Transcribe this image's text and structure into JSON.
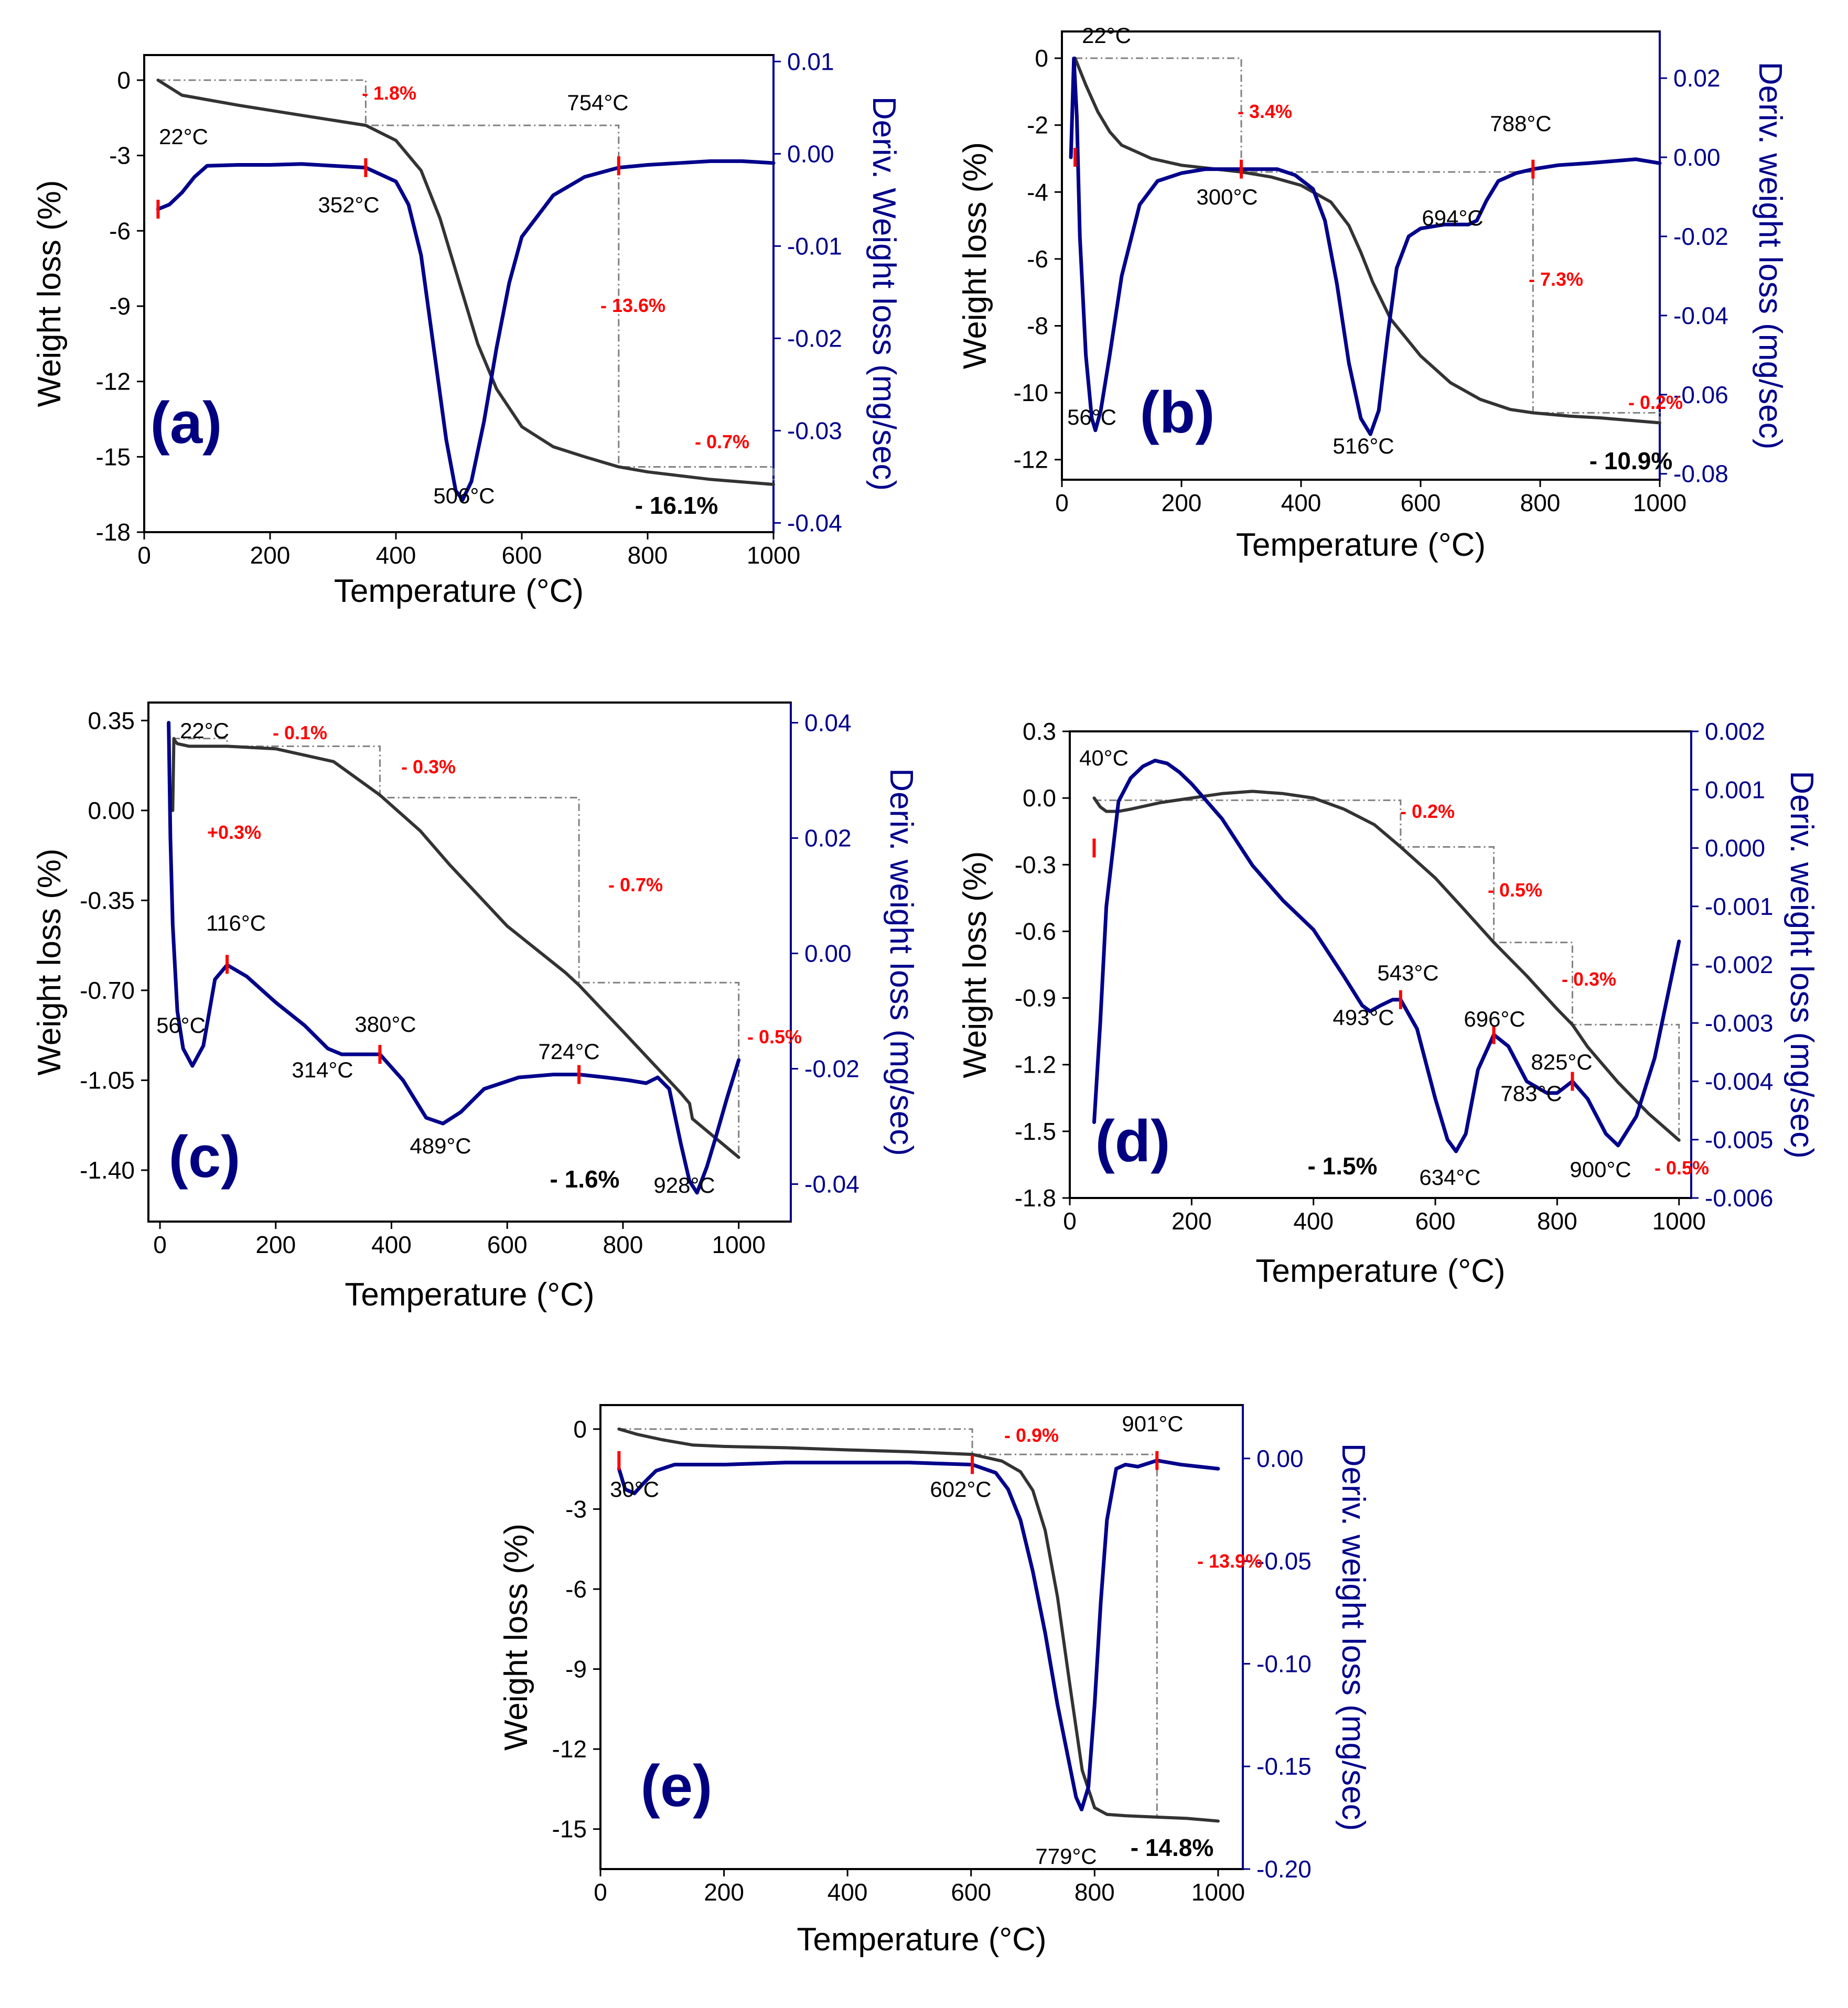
{
  "figure": {
    "axis_labels": {
      "x": "Temperature (°C)",
      "y_left": "Weight loss (%)",
      "y_right_a": "Deriv. Weight loss (mg/sec)",
      "y_right_other": "Deriv. weight loss (mg/sec)"
    },
    "colors": {
      "weight": "#333333",
      "deriv": "#00008b",
      "marker": "#ff0000",
      "label": "#000080",
      "step": "#808080"
    }
  },
  "chart_data": [
    {
      "id": "a",
      "type": "line",
      "panel_label": "(a)",
      "xlabel": "Temperature (°C)",
      "ylabel": "Weight loss (%)",
      "y2label": "Deriv. Weight loss (mg/sec)",
      "xlim": [
        0,
        1000
      ],
      "ylim": [
        -18,
        1
      ],
      "y2lim": [
        -0.041,
        0.0107
      ],
      "x_ticks": [
        0,
        200,
        400,
        600,
        800,
        1000
      ],
      "y_ticks": [
        0,
        -3,
        -6,
        -9,
        -12,
        -15,
        -18
      ],
      "y_tick_labels": [
        "0",
        "-3",
        "-6",
        "-9",
        "-12",
        "-15",
        "-18"
      ],
      "y2_ticks": [
        0.01,
        0.0,
        -0.01,
        -0.02,
        -0.03,
        -0.04
      ],
      "y2_tick_labels": [
        "0.01",
        "0.00",
        "-0.01",
        "-0.02",
        "-0.03",
        "-0.04"
      ],
      "series": [
        {
          "name": "Weight loss",
          "axis": "left",
          "x": [
            22,
            60,
            150,
            250,
            352,
            400,
            440,
            470,
            500,
            530,
            560,
            600,
            650,
            700,
            754,
            800,
            900,
            1000
          ],
          "values": [
            0,
            -0.6,
            -1.0,
            -1.4,
            -1.8,
            -2.4,
            -3.6,
            -5.5,
            -8.0,
            -10.5,
            -12.3,
            -13.8,
            -14.6,
            -15.0,
            -15.4,
            -15.6,
            -15.9,
            -16.1
          ]
        },
        {
          "name": "Deriv. weight loss",
          "axis": "right",
          "x": [
            22,
            40,
            60,
            80,
            100,
            150,
            200,
            250,
            300,
            352,
            400,
            420,
            440,
            460,
            480,
            495,
            506,
            520,
            540,
            560,
            580,
            600,
            650,
            700,
            754,
            800,
            850,
            900,
            950,
            1000
          ],
          "values": [
            -0.006,
            -0.0055,
            -0.0042,
            -0.0025,
            -0.0013,
            -0.0012,
            -0.0012,
            -0.0011,
            -0.0013,
            -0.0015,
            -0.003,
            -0.0055,
            -0.011,
            -0.021,
            -0.031,
            -0.0365,
            -0.0375,
            -0.0355,
            -0.029,
            -0.021,
            -0.014,
            -0.009,
            -0.0045,
            -0.0025,
            -0.0015,
            -0.0012,
            -0.001,
            -0.0008,
            -0.0008,
            -0.001
          ]
        }
      ],
      "markers": [
        [
          22,
          -0.006
        ],
        [
          352,
          -0.0015
        ],
        [
          754,
          -0.0013
        ]
      ],
      "temp_labels": [
        "22°C",
        "352°C",
        "754°C",
        "506°C"
      ],
      "step_labels": [
        "- 1.8%",
        "- 13.6%",
        "- 0.7%"
      ],
      "total": "- 16.1%"
    },
    {
      "id": "b",
      "type": "line",
      "panel_label": "(b)",
      "xlabel": "Temperature (°C)",
      "ylabel": "Weight loss (%)",
      "y2label": "Deriv. weight loss (mg/sec)",
      "xlim": [
        0,
        1000
      ],
      "ylim": [
        -12.6,
        0.8
      ],
      "y2lim": [
        -0.0815,
        0.0318
      ],
      "x_ticks": [
        0,
        200,
        400,
        600,
        800,
        1000
      ],
      "y_ticks": [
        0,
        -2,
        -4,
        -6,
        -8,
        -10,
        -12
      ],
      "y_tick_labels": [
        "0",
        "-2",
        "-4",
        "-6",
        "-8",
        "-10",
        "-12"
      ],
      "y2_ticks": [
        0.02,
        0.0,
        -0.02,
        -0.04,
        -0.06,
        -0.08
      ],
      "y2_tick_labels": [
        "0.02",
        "0.00",
        "-0.02",
        "-0.04",
        "-0.06",
        "-0.08"
      ],
      "series": [
        {
          "name": "Weight loss",
          "axis": "left",
          "x": [
            22,
            40,
            60,
            80,
            100,
            150,
            200,
            250,
            300,
            350,
            400,
            450,
            480,
            500,
            520,
            550,
            600,
            650,
            700,
            750,
            788,
            850,
            900,
            1000
          ],
          "values": [
            0,
            -0.8,
            -1.6,
            -2.2,
            -2.6,
            -3.0,
            -3.2,
            -3.3,
            -3.4,
            -3.55,
            -3.8,
            -4.3,
            -5.0,
            -5.8,
            -6.7,
            -7.8,
            -8.9,
            -9.7,
            -10.2,
            -10.5,
            -10.6,
            -10.7,
            -10.75,
            -10.9
          ]
        },
        {
          "name": "Deriv. weight loss",
          "axis": "right",
          "x": [
            15,
            20,
            25,
            30,
            40,
            50,
            56,
            65,
            80,
            100,
            130,
            160,
            200,
            240,
            270,
            300,
            330,
            360,
            390,
            420,
            440,
            460,
            480,
            500,
            516,
            530,
            545,
            560,
            580,
            600,
            640,
            680,
            694,
            710,
            730,
            760,
            788,
            830,
            880,
            920,
            960,
            1000
          ],
          "values": [
            0.0,
            0.025,
            0.01,
            -0.02,
            -0.05,
            -0.066,
            -0.069,
            -0.064,
            -0.05,
            -0.03,
            -0.012,
            -0.006,
            -0.004,
            -0.003,
            -0.003,
            -0.003,
            -0.003,
            -0.003,
            -0.0045,
            -0.008,
            -0.016,
            -0.032,
            -0.052,
            -0.066,
            -0.07,
            -0.064,
            -0.045,
            -0.028,
            -0.02,
            -0.018,
            -0.017,
            -0.017,
            -0.016,
            -0.011,
            -0.006,
            -0.004,
            -0.003,
            -0.002,
            -0.0015,
            -0.001,
            -0.0005,
            -0.0015
          ]
        }
      ],
      "markers": [
        [
          22,
          0.0
        ],
        [
          300,
          -0.003
        ],
        [
          788,
          -0.003
        ]
      ],
      "temp_labels": [
        "22°C",
        "300°C",
        "694°C",
        "788°C",
        "56°C",
        "516°C"
      ],
      "step_labels": [
        "- 3.4%",
        "- 7.3%",
        "- 0.2%"
      ],
      "total": "- 10.9%"
    },
    {
      "id": "c",
      "type": "line",
      "panel_label": "(c)",
      "xlabel": "Temperature (°C)",
      "ylabel": "Weight loss (%)",
      "y2label": "Deriv. weight loss (mg/sec)",
      "xlim": [
        -20,
        1090
      ],
      "ylim": [
        -1.6,
        0.42
      ],
      "y2lim": [
        -0.0465,
        0.0435
      ],
      "x_ticks": [
        0,
        200,
        400,
        600,
        800,
        1000
      ],
      "y_ticks": [
        0.35,
        0.0,
        -0.35,
        -0.7,
        -1.05,
        -1.4
      ],
      "y_tick_labels": [
        "0.35",
        "0.00",
        "-0.35",
        "-0.70",
        "-1.05",
        "-1.40"
      ],
      "y2_ticks": [
        0.04,
        0.02,
        0.0,
        -0.02,
        -0.04
      ],
      "y2_tick_labels": [
        "0.04",
        "0.02",
        "0.00",
        "-0.02",
        "-0.04"
      ],
      "series": [
        {
          "name": "Weight loss",
          "axis": "left",
          "x": [
            22,
            24,
            26,
            30,
            50,
            116,
            200,
            300,
            380,
            450,
            500,
            600,
            700,
            724,
            800,
            850,
            900,
            915,
            920,
            1000
          ],
          "values": [
            0.0,
            0.28,
            0.27,
            0.26,
            0.25,
            0.25,
            0.24,
            0.19,
            0.06,
            -0.08,
            -0.21,
            -0.45,
            -0.63,
            -0.68,
            -0.86,
            -0.98,
            -1.1,
            -1.14,
            -1.2,
            -1.35
          ]
        },
        {
          "name": "Deriv. weight loss",
          "axis": "right",
          "x": [
            15,
            18,
            22,
            30,
            40,
            56,
            75,
            95,
            116,
            150,
            200,
            250,
            290,
            314,
            340,
            380,
            420,
            460,
            489,
            520,
            560,
            620,
            680,
            724,
            770,
            810,
            840,
            860,
            880,
            900,
            915,
            928,
            945,
            960,
            980,
            1000
          ],
          "values": [
            0.04,
            0.02,
            0.005,
            -0.01,
            -0.0165,
            -0.0195,
            -0.016,
            -0.0045,
            -0.002,
            -0.004,
            -0.0085,
            -0.0125,
            -0.0165,
            -0.0175,
            -0.0175,
            -0.0175,
            -0.022,
            -0.0285,
            -0.0295,
            -0.0275,
            -0.0235,
            -0.0215,
            -0.021,
            -0.021,
            -0.0215,
            -0.022,
            -0.0225,
            -0.0215,
            -0.0235,
            -0.033,
            -0.0395,
            -0.0415,
            -0.037,
            -0.032,
            -0.025,
            -0.0185
          ]
        }
      ],
      "markers": [
        [
          116,
          -0.0019
        ],
        [
          380,
          -0.0175
        ],
        [
          724,
          -0.021
        ]
      ],
      "temp_labels": [
        "22°C",
        "116°C",
        "56°C",
        "380°C",
        "314°C",
        "724°C",
        "489°C",
        "928°C"
      ],
      "step_labels": [
        "+0.3%",
        "- 0.1%",
        "- 0.3%",
        "- 0.7%",
        "- 0.5%"
      ],
      "total": "- 1.6%"
    },
    {
      "id": "d",
      "type": "line",
      "panel_label": "(d)",
      "xlabel": "Temperature (°C)",
      "ylabel": "Weight loss (%)",
      "y2label": "Deriv. weight loss (mg/sec)",
      "xlim": [
        0,
        1020
      ],
      "ylim": [
        -1.8,
        0.3
      ],
      "y2lim": [
        -0.006,
        0.002
      ],
      "x_ticks": [
        0,
        200,
        400,
        600,
        800,
        1000
      ],
      "y_ticks": [
        0.3,
        0.0,
        -0.3,
        -0.6,
        -0.9,
        -1.2,
        -1.5,
        -1.8
      ],
      "y_tick_labels": [
        "0.3",
        "0.0",
        "-0.3",
        "-0.6",
        "-0.9",
        "-1.2",
        "-1.5",
        "-1.8"
      ],
      "y2_ticks": [
        0.002,
        0.001,
        0.0,
        -0.001,
        -0.002,
        -0.003,
        -0.004,
        -0.005,
        -0.006
      ],
      "y2_tick_labels": [
        "0.002",
        "0.001",
        "0.000",
        "-0.001",
        "-0.002",
        "-0.003",
        "-0.004",
        "-0.005",
        "-0.006"
      ],
      "series": [
        {
          "name": "Weight loss",
          "axis": "left",
          "x": [
            40,
            50,
            60,
            80,
            100,
            150,
            200,
            250,
            300,
            350,
            400,
            450,
            500,
            543,
            600,
            650,
            696,
            750,
            800,
            825,
            850,
            900,
            950,
            1000
          ],
          "values": [
            0.0,
            -0.04,
            -0.06,
            -0.06,
            -0.05,
            -0.02,
            0.0,
            0.02,
            0.03,
            0.02,
            0.0,
            -0.05,
            -0.12,
            -0.22,
            -0.36,
            -0.51,
            -0.65,
            -0.8,
            -0.95,
            -1.02,
            -1.12,
            -1.28,
            -1.42,
            -1.54
          ]
        },
        {
          "name": "Deriv. weight loss",
          "axis": "right",
          "x": [
            40,
            50,
            60,
            80,
            100,
            120,
            140,
            160,
            180,
            200,
            250,
            300,
            350,
            400,
            450,
            480,
            493,
            510,
            530,
            543,
            570,
            600,
            620,
            634,
            650,
            670,
            696,
            720,
            750,
            783,
            800,
            825,
            850,
            880,
            900,
            930,
            960,
            1000
          ],
          "values": [
            -0.0047,
            -0.003,
            -0.001,
            0.0008,
            0.0012,
            0.0014,
            0.0015,
            0.00145,
            0.0013,
            0.0011,
            0.0005,
            -0.0003,
            -0.0009,
            -0.0014,
            -0.0022,
            -0.0027,
            -0.0028,
            -0.0027,
            -0.0026,
            -0.0026,
            -0.0031,
            -0.0043,
            -0.005,
            -0.0052,
            -0.0049,
            -0.0038,
            -0.0032,
            -0.0034,
            -0.004,
            -0.0042,
            -0.0042,
            -0.004,
            -0.0043,
            -0.0049,
            -0.0051,
            -0.0046,
            -0.0036,
            -0.0016
          ]
        }
      ],
      "markers": [
        [
          40,
          0.0
        ],
        [
          543,
          -0.0026
        ],
        [
          696,
          -0.0032
        ],
        [
          825,
          -0.004
        ]
      ],
      "temp_labels": [
        "40°C",
        "543°C",
        "493°C",
        "696°C",
        "825°C",
        "783°C",
        "634°C",
        "900°C"
      ],
      "step_labels": [
        "- 0.2%",
        "- 0.5%",
        "- 0.3%",
        "- 0.5%"
      ],
      "total": "- 1.5%"
    },
    {
      "id": "e",
      "type": "line",
      "panel_label": "(e)",
      "xlabel": "Temperature (°C)",
      "ylabel": "Weight loss (%)",
      "y2label": "Deriv. weight loss (mg/sec)",
      "xlim": [
        0,
        1040
      ],
      "ylim": [
        -16.5,
        0.9
      ],
      "y2lim": [
        -0.2,
        0.026
      ],
      "x_ticks": [
        0,
        200,
        400,
        600,
        800,
        1000
      ],
      "y_ticks": [
        0,
        -3,
        -6,
        -9,
        -12,
        -15
      ],
      "y_tick_labels": [
        "0",
        "-3",
        "-6",
        "-9",
        "-12",
        "-15"
      ],
      "y2_ticks": [
        0.0,
        -0.05,
        -0.1,
        -0.15,
        -0.2
      ],
      "y2_tick_labels": [
        "0.00",
        "-0.05",
        "-0.10",
        "-0.15",
        "-0.20"
      ],
      "series": [
        {
          "name": "Weight loss",
          "axis": "left",
          "x": [
            30,
            60,
            100,
            150,
            200,
            300,
            400,
            500,
            602,
            650,
            680,
            700,
            720,
            740,
            760,
            780,
            800,
            820,
            850,
            900,
            950,
            1000
          ],
          "values": [
            0,
            -0.2,
            -0.4,
            -0.6,
            -0.65,
            -0.7,
            -0.78,
            -0.85,
            -0.95,
            -1.2,
            -1.6,
            -2.3,
            -3.8,
            -6.3,
            -9.6,
            -12.8,
            -14.2,
            -14.45,
            -14.5,
            -14.55,
            -14.6,
            -14.7
          ]
        },
        {
          "name": "Deriv. weight loss",
          "axis": "right",
          "x": [
            30,
            40,
            55,
            70,
            90,
            120,
            150,
            200,
            300,
            400,
            500,
            602,
            640,
            660,
            680,
            700,
            720,
            740,
            760,
            770,
            779,
            790,
            800,
            810,
            820,
            835,
            850,
            870,
            901,
            940,
            1000
          ],
          "values": [
            -0.005,
            -0.015,
            -0.017,
            -0.012,
            -0.006,
            -0.003,
            -0.003,
            -0.003,
            -0.002,
            -0.002,
            -0.002,
            -0.003,
            -0.007,
            -0.015,
            -0.03,
            -0.055,
            -0.085,
            -0.12,
            -0.15,
            -0.165,
            -0.171,
            -0.16,
            -0.12,
            -0.07,
            -0.03,
            -0.005,
            -0.003,
            -0.004,
            -0.001,
            -0.003,
            -0.005
          ]
        }
      ],
      "markers": [
        [
          30,
          -0.001
        ],
        [
          602,
          -0.003
        ],
        [
          901,
          -0.001
        ]
      ],
      "temp_labels": [
        "30°C",
        "602°C",
        "901°C",
        "779°C"
      ],
      "step_labels": [
        "- 0.9%",
        "- 13.9%"
      ],
      "total": "- 14.8%"
    }
  ]
}
